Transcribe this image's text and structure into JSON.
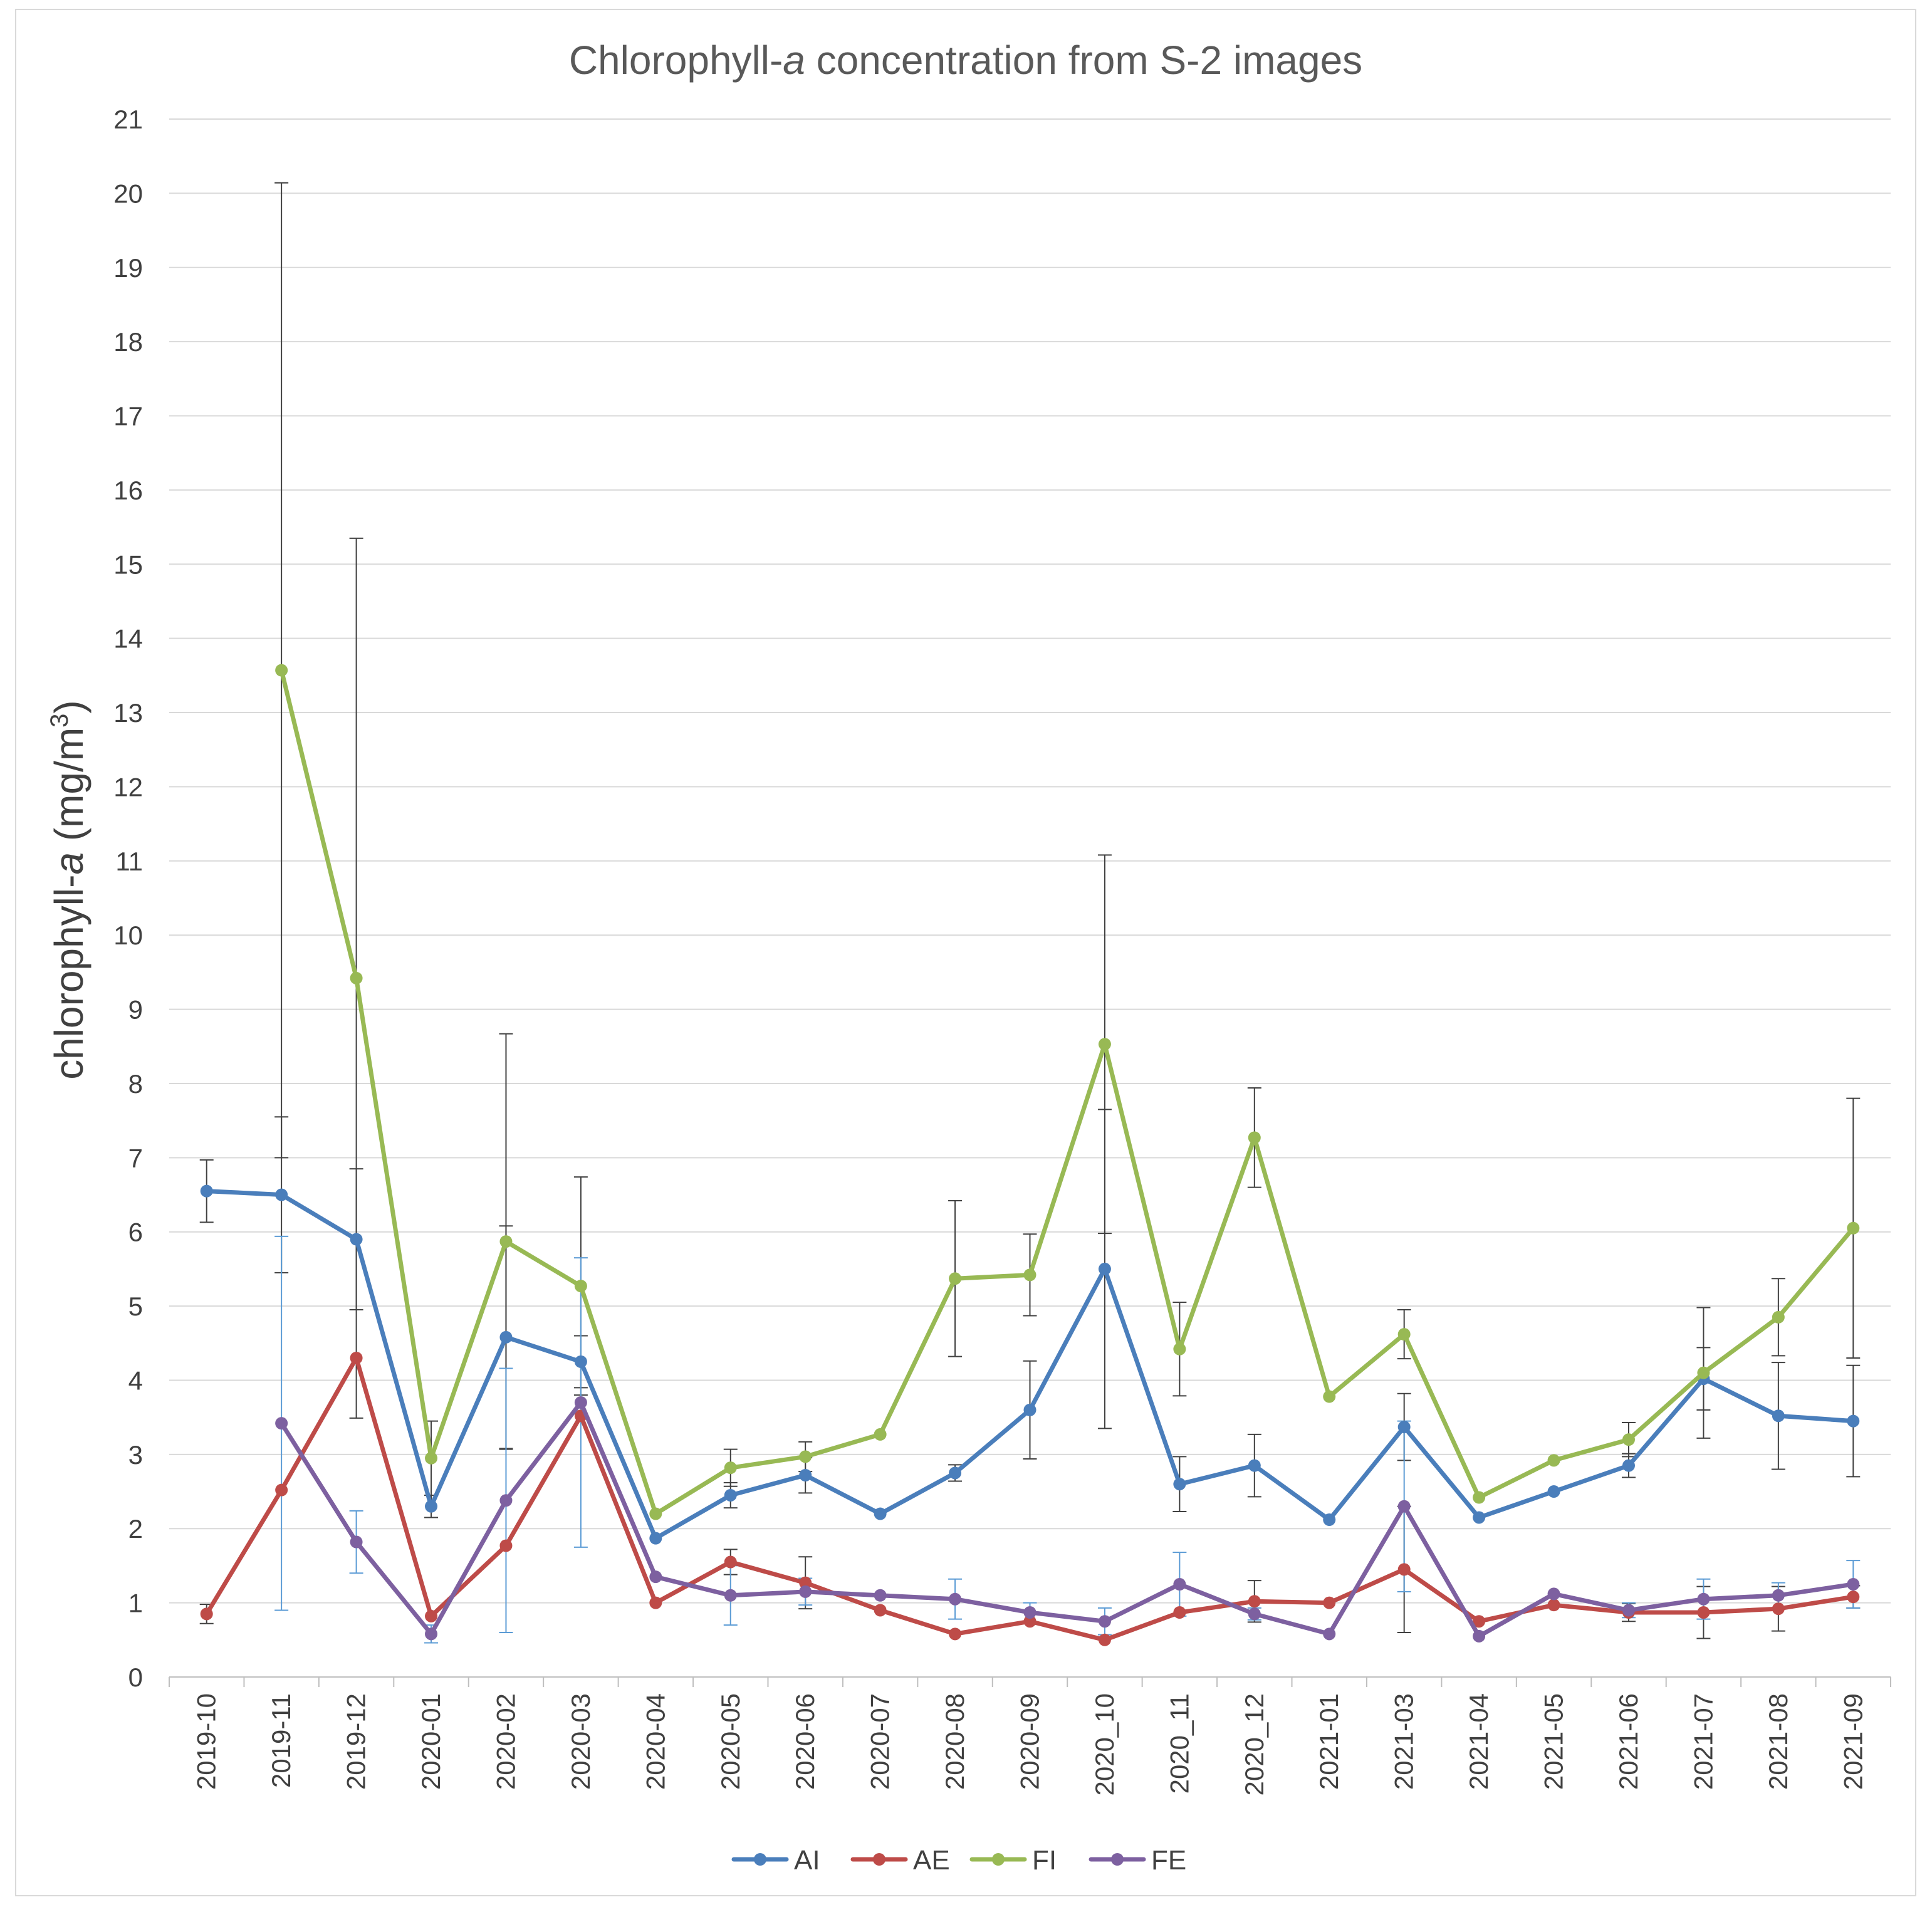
{
  "chart_data": {
    "type": "line",
    "title_main": "Chlorophyll-",
    "title_italic": "a",
    "title_rest": " concentration from S-2 images",
    "ylabel_main": "chlorophyll-",
    "ylabel_italic": "a",
    "ylabel_unit_prefix": " (mg/m",
    "ylabel_unit_sup": "3",
    "ylabel_unit_suffix": ")",
    "xlabel": "",
    "ylim": [
      0,
      21
    ],
    "yticks": [
      0,
      1,
      2,
      3,
      4,
      5,
      6,
      7,
      8,
      9,
      10,
      11,
      12,
      13,
      14,
      15,
      16,
      17,
      18,
      19,
      20,
      21
    ],
    "grid": "horizontal",
    "legend_position": "bottom",
    "categories": [
      "2019-10",
      "2019-11",
      "2019-12",
      "2020-01",
      "2020-02",
      "2020-03",
      "2020-04",
      "2020-05",
      "2020-06",
      "2020-07",
      "2020-08",
      "2020-09",
      "2020_10",
      "2020_11",
      "2020_12",
      "2021-01",
      "2021-03",
      "2021-04",
      "2021-05",
      "2021-06",
      "2021-07",
      "2021-08",
      "2021-09"
    ],
    "series": [
      {
        "name": "AI",
        "color": "#4a7ebb",
        "error_color": "#404040",
        "values": [
          6.55,
          6.5,
          5.9,
          2.3,
          4.58,
          4.25,
          1.87,
          2.45,
          2.72,
          2.2,
          2.75,
          3.6,
          5.5,
          2.6,
          2.85,
          2.12,
          3.37,
          2.15,
          2.5,
          2.85,
          4.02,
          3.52,
          3.45
        ],
        "errors": [
          0.42,
          1.05,
          0.95,
          0.15,
          1.5,
          0.35,
          null,
          0.17,
          0.24,
          null,
          0.11,
          0.66,
          2.15,
          0.37,
          0.42,
          null,
          0.45,
          null,
          null,
          0.16,
          0.42,
          0.72,
          0.75
        ]
      },
      {
        "name": "AE",
        "color": "#be4b48",
        "error_color": "#404040",
        "values": [
          0.85,
          2.52,
          4.3,
          0.82,
          1.77,
          3.52,
          1.0,
          1.55,
          1.27,
          0.9,
          0.58,
          0.75,
          0.5,
          0.87,
          1.02,
          1.0,
          1.45,
          0.75,
          0.97,
          0.87,
          0.87,
          0.92,
          1.08
        ],
        "errors": [
          0.13,
          null,
          null,
          null,
          null,
          null,
          null,
          0.17,
          0.35,
          null,
          null,
          null,
          null,
          null,
          0.28,
          null,
          0.85,
          null,
          null,
          0.12,
          0.35,
          0.3,
          0.15
        ]
      },
      {
        "name": "FI",
        "color": "#98b954",
        "error_color": "#404040",
        "values": [
          null,
          13.57,
          9.42,
          2.95,
          5.87,
          5.27,
          2.2,
          2.82,
          2.97,
          3.27,
          5.37,
          5.42,
          8.53,
          4.42,
          7.27,
          3.78,
          4.62,
          2.42,
          2.92,
          3.2,
          4.1,
          4.85,
          6.05
        ],
        "errors": [
          null,
          6.57,
          5.93,
          0.5,
          2.8,
          1.47,
          null,
          0.25,
          0.2,
          null,
          1.05,
          0.55,
          2.55,
          0.63,
          0.67,
          null,
          0.33,
          null,
          null,
          0.23,
          0.88,
          0.52,
          1.75
        ]
      },
      {
        "name": "FE",
        "color": "#7d60a0",
        "error_color": "#5b9bd5",
        "values": [
          null,
          3.42,
          1.82,
          0.58,
          2.38,
          3.7,
          1.35,
          1.1,
          1.15,
          1.1,
          1.05,
          0.87,
          0.75,
          1.25,
          0.85,
          0.58,
          2.3,
          0.55,
          1.12,
          0.9,
          1.05,
          1.1,
          1.25
        ],
        "errors": [
          null,
          2.52,
          0.42,
          0.12,
          1.78,
          1.95,
          null,
          0.4,
          0.18,
          null,
          0.27,
          0.13,
          0.18,
          0.43,
          0.08,
          null,
          1.15,
          null,
          null,
          0.1,
          0.27,
          0.17,
          0.32
        ]
      }
    ]
  }
}
